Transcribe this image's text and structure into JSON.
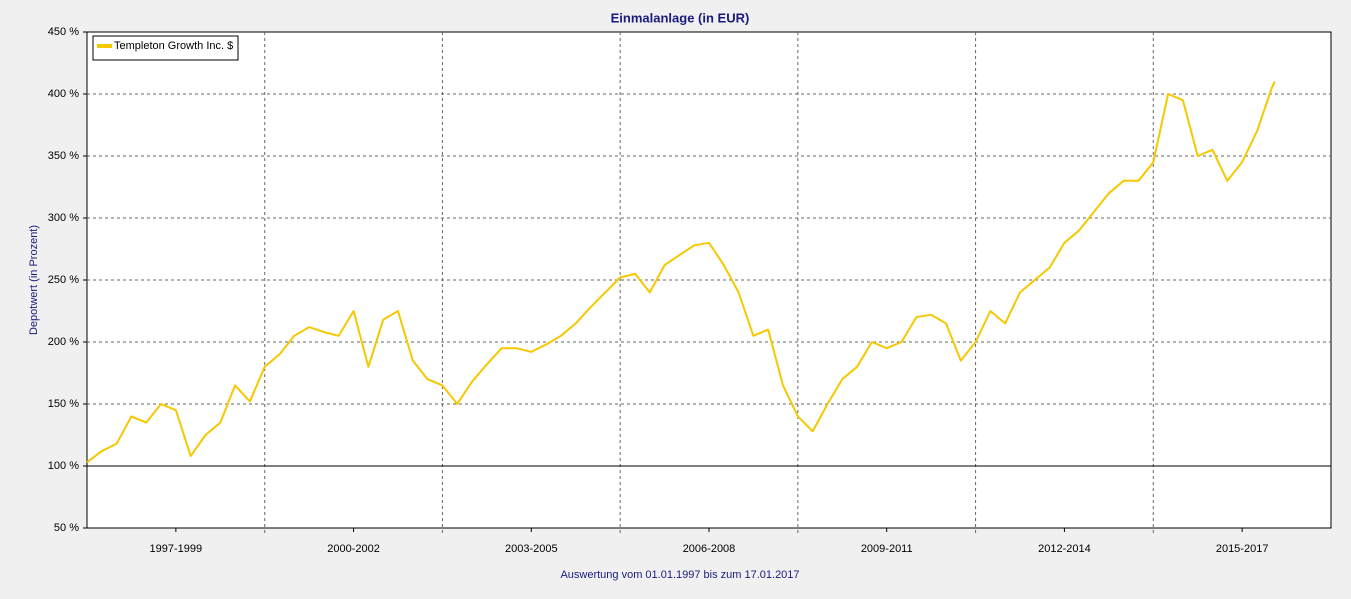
{
  "chart_data": {
    "type": "line",
    "title": "Einmalanlage (in EUR)",
    "y_label": "Depotwert (in Prozent)",
    "footer": "Auswertung vom 01.01.1997 bis zum 17.01.2017",
    "legend": "upper left",
    "grid": true,
    "baseline": 100,
    "xlim": [
      1997,
      2018
    ],
    "xticks": [
      {
        "value": 1998.5,
        "label": "1997-1999"
      },
      {
        "value": 2001.5,
        "label": "2000-2002"
      },
      {
        "value": 2004.5,
        "label": "2003-2005"
      },
      {
        "value": 2007.5,
        "label": "2006-2008"
      },
      {
        "value": 2010.5,
        "label": "2009-2011"
      },
      {
        "value": 2013.5,
        "label": "2012-2014"
      },
      {
        "value": 2016.5,
        "label": "2015-2017"
      }
    ],
    "ylim": [
      50,
      450
    ],
    "yticks": [
      {
        "value": 50,
        "label": "50 %"
      },
      {
        "value": 100,
        "label": "100 %"
      },
      {
        "value": 150,
        "label": "150 %"
      },
      {
        "value": 200,
        "label": "200 %"
      },
      {
        "value": 250,
        "label": "250 %"
      },
      {
        "value": 300,
        "label": "300 %"
      },
      {
        "value": 350,
        "label": "350 %"
      },
      {
        "value": 400,
        "label": "400 %"
      },
      {
        "value": 450,
        "label": "450 %"
      }
    ],
    "x": [
      1997.0,
      1997.25,
      1997.5,
      1997.75,
      1998.0,
      1998.25,
      1998.5,
      1998.75,
      1999.0,
      1999.25,
      1999.5,
      1999.75,
      2000.0,
      2000.25,
      2000.5,
      2000.75,
      2001.0,
      2001.25,
      2001.5,
      2001.75,
      2002.0,
      2002.25,
      2002.5,
      2002.75,
      2003.0,
      2003.25,
      2003.5,
      2003.75,
      2004.0,
      2004.25,
      2004.5,
      2004.75,
      2005.0,
      2005.25,
      2005.5,
      2005.75,
      2006.0,
      2006.25,
      2006.5,
      2006.75,
      2007.0,
      2007.25,
      2007.5,
      2007.75,
      2008.0,
      2008.25,
      2008.5,
      2008.75,
      2009.0,
      2009.25,
      2009.5,
      2009.75,
      2010.0,
      2010.25,
      2010.5,
      2010.75,
      2011.0,
      2011.25,
      2011.5,
      2011.75,
      2012.0,
      2012.25,
      2012.5,
      2012.75,
      2013.0,
      2013.25,
      2013.5,
      2013.75,
      2014.0,
      2014.25,
      2014.5,
      2014.75,
      2015.0,
      2015.25,
      2015.5,
      2015.75,
      2016.0,
      2016.25,
      2016.5,
      2016.75,
      2017.0,
      2017.05
    ],
    "series": [
      {
        "name": "Templeton Growth Inc. $",
        "color": "#f5c800",
        "values": [
          103,
          112,
          118,
          140,
          135,
          150,
          145,
          108,
          125,
          135,
          165,
          152,
          180,
          190,
          205,
          212,
          208,
          205,
          225,
          180,
          218,
          225,
          185,
          170,
          165,
          150,
          168,
          182,
          195,
          195,
          192,
          198,
          205,
          215,
          228,
          240,
          252,
          255,
          240,
          262,
          270,
          278,
          280,
          262,
          240,
          205,
          210,
          165,
          140,
          128,
          150,
          170,
          180,
          200,
          195,
          200,
          220,
          222,
          215,
          185,
          200,
          225,
          215,
          240,
          250,
          260,
          280,
          290,
          305,
          320,
          330,
          330,
          345,
          400,
          395,
          350,
          355,
          330,
          345,
          370,
          405,
          410
        ]
      }
    ]
  }
}
